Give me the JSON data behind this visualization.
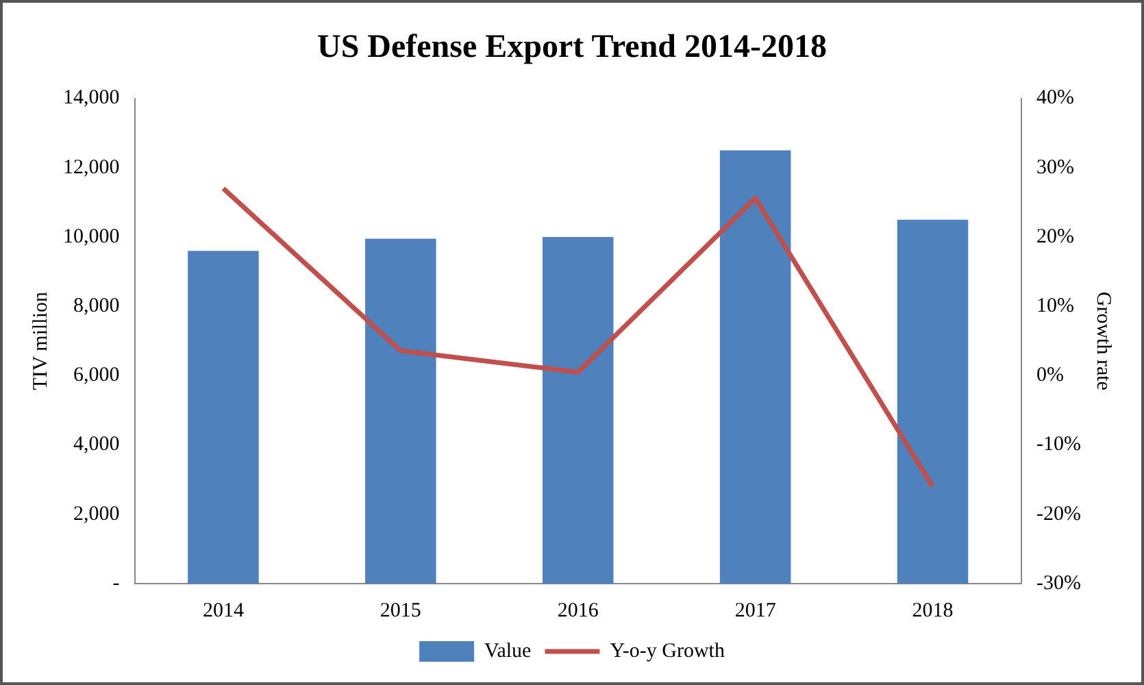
{
  "chart_data": {
    "type": "bar",
    "title": "US Defense Export Trend 2014-2018",
    "ylabel": "TIV million",
    "y2label": "Growth rate",
    "categories": [
      "2014",
      "2015",
      "2016",
      "2017",
      "2018"
    ],
    "series": [
      {
        "name": "Value",
        "color": "#4f81bd",
        "values": [
          9600,
          9950,
          10000,
          12500,
          10500
        ]
      },
      {
        "name": "Y-o-y Growth",
        "type": "line",
        "axis": "y2",
        "color": "#c0504d",
        "values": [
          27,
          3.6,
          0.5,
          25.6,
          -16
        ]
      }
    ],
    "ylim": [
      0,
      14000
    ],
    "yticks": [
      {
        "value": 0,
        "label": "-"
      },
      {
        "value": 2000,
        "label": "2,000"
      },
      {
        "value": 4000,
        "label": "4,000"
      },
      {
        "value": 6000,
        "label": "6,000"
      },
      {
        "value": 8000,
        "label": "8,000"
      },
      {
        "value": 10000,
        "label": "10,000"
      },
      {
        "value": 12000,
        "label": "12,000"
      },
      {
        "value": 14000,
        "label": "14,000"
      }
    ],
    "y2lim": [
      -30,
      40
    ],
    "y2ticks": [
      {
        "value": -30,
        "label": "-30%"
      },
      {
        "value": -20,
        "label": "-20%"
      },
      {
        "value": -10,
        "label": "-10%"
      },
      {
        "value": 0,
        "label": "0%"
      },
      {
        "value": 10,
        "label": "10%"
      },
      {
        "value": 20,
        "label": "20%"
      },
      {
        "value": 30,
        "label": "30%"
      },
      {
        "value": 40,
        "label": "40%"
      }
    ],
    "grid": false,
    "legend": "bottom",
    "marker": "none",
    "line_style": "solid"
  }
}
